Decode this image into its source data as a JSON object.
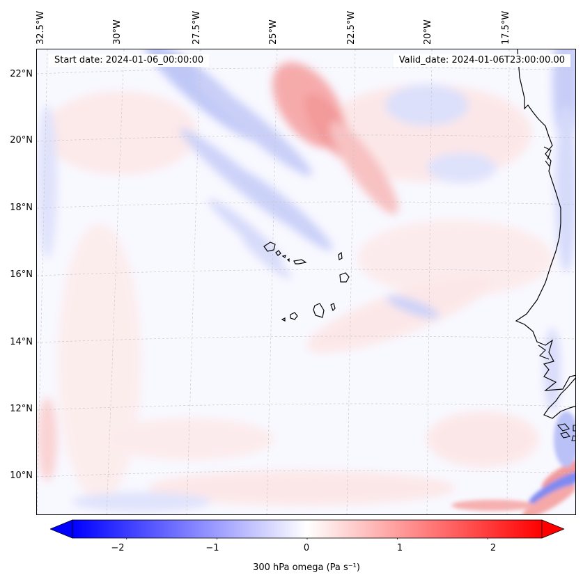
{
  "header": {
    "start_date": "Start date: 2024-01-06_00:00:00",
    "valid_date": "Valid_date: 2024-01-06T23:00:00.00"
  },
  "axes": {
    "longitude_labels": [
      "32.5°W",
      "30°W",
      "27.5°W",
      "25°W",
      "22.5°W",
      "20°W",
      "17.5°W"
    ],
    "latitude_labels": [
      "22°N",
      "20°N",
      "18°N",
      "16°N",
      "14°N",
      "12°N",
      "10°N"
    ]
  },
  "colorbar": {
    "label": "300 hPa omega (Pa s⁻¹)",
    "ticks": [
      "−2",
      "−1",
      "0",
      "1",
      "2"
    ],
    "range": [
      -2.6,
      2.6
    ],
    "colormap": "bwr",
    "extend": "both"
  },
  "colors": {
    "negative": "#0000ff",
    "zero": "#ffffff",
    "positive": "#ff0000",
    "coastline": "#000000",
    "gridline": "#c8c8c8"
  },
  "map": {
    "projection": "lambert-conformal",
    "extent_lon": [
      -32.5,
      -16.0
    ],
    "extent_lat": [
      9.0,
      22.5
    ],
    "gridlines": true,
    "features": [
      "coastline-west-africa",
      "cape-verde-islands"
    ]
  }
}
